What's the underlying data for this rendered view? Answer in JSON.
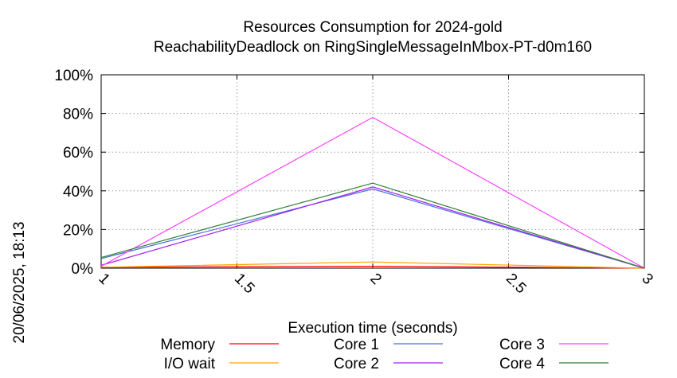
{
  "chart_data": {
    "type": "line",
    "title": "Resources Consumption for 2024-gold",
    "subtitle": "ReachabilityDeadlock on RingSingleMessageInMbox-PT-d0m160",
    "xlabel": "Execution time (seconds)",
    "ylabel": "",
    "timestamp": "20/06/2025, 18:13",
    "xlim": [
      1,
      3
    ],
    "ylim": [
      0,
      100
    ],
    "x_ticks": [
      "1",
      "1.5",
      "2",
      "2.5",
      "3"
    ],
    "y_ticks": [
      "0%",
      "20%",
      "40%",
      "60%",
      "80%",
      "100%"
    ],
    "grid": true,
    "legend_position": "bottom",
    "x": [
      1,
      2,
      3
    ],
    "series": [
      {
        "name": "Memory",
        "color": "#ff0000",
        "values": [
          0.5,
          1,
          0
        ]
      },
      {
        "name": "I/O wait",
        "color": "#ffa500",
        "values": [
          0.5,
          3.2,
          0
        ]
      },
      {
        "name": "Core 1",
        "color": "#4a6fd8",
        "values": [
          5,
          41,
          0
        ]
      },
      {
        "name": "Core 2",
        "color": "#a020f0",
        "values": [
          1.5,
          42,
          0
        ]
      },
      {
        "name": "Core 3",
        "color": "#ff40ff",
        "values": [
          1,
          78,
          0
        ]
      },
      {
        "name": "Core 4",
        "color": "#2e7d32",
        "values": [
          5.5,
          44,
          0
        ]
      }
    ]
  }
}
